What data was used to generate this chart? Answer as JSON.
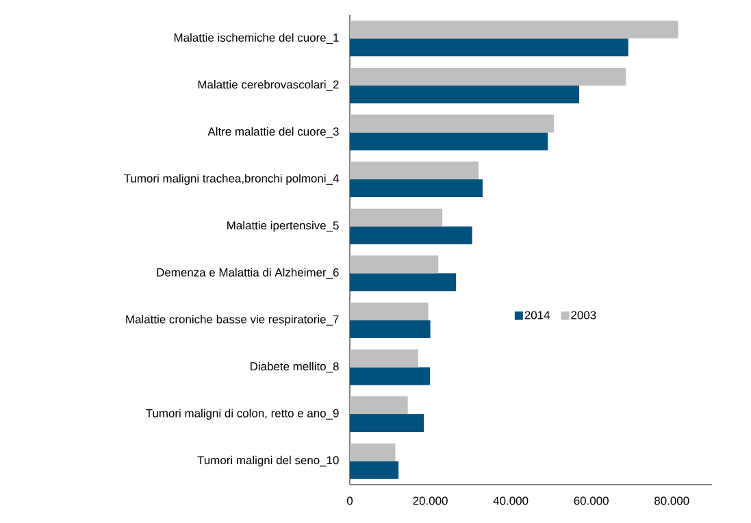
{
  "chart_data": {
    "type": "bar",
    "orientation": "horizontal",
    "categories": [
      "Malattie ischemiche del cuore_1",
      "Malattie cerebrovascolari_2",
      "Altre malattie del cuore_3",
      "Tumori maligni trachea,bronchi polmoni_4",
      "Malattie ipertensive_5",
      "Demenza e Malattia di Alzheimer_6",
      "Malattie croniche basse vie respiratorie_7",
      "Diabete mellito_8",
      "Tumori maligni di colon, retto e ano_9",
      "Tumori maligni del seno_10"
    ],
    "series": [
      {
        "name": "2014",
        "color": "#00527c",
        "values": [
          69200,
          57000,
          49200,
          33000,
          30400,
          26400,
          20000,
          19900,
          18400,
          12100
        ]
      },
      {
        "name": "2003",
        "color": "#bfbfbf",
        "values": [
          81600,
          68600,
          50700,
          32000,
          23000,
          22000,
          19500,
          17000,
          14400,
          11300
        ]
      }
    ],
    "xlim": [
      0,
      90000
    ],
    "xticks": [
      0,
      {
        "value": 20000,
        "label": "20.000"
      },
      {
        "value": 40000,
        "label": "40.000"
      },
      {
        "value": 60000,
        "label": "60.000"
      },
      {
        "value": 80000,
        "label": "80.000"
      }
    ],
    "legend": "right",
    "grid": false
  }
}
